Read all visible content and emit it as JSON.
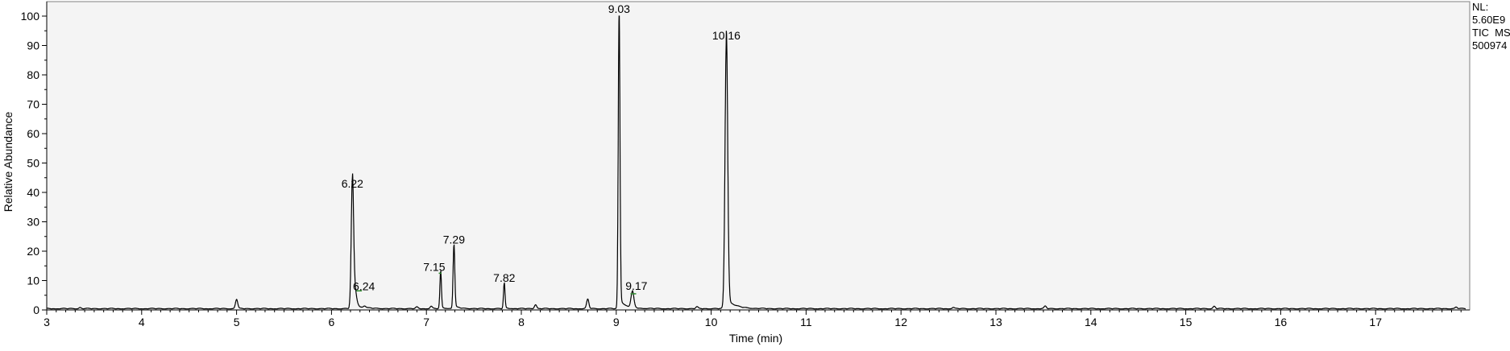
{
  "info": {
    "nl_label": "NL:",
    "nl_value": "5.60E9",
    "trace": "TIC  MS",
    "file": "500974"
  },
  "colors": {
    "plot_bg": "#f4f4f4",
    "trace": "#000000",
    "frame": "#808080",
    "marker": "#2e8b2e"
  },
  "chart_data": {
    "type": "line",
    "title": "",
    "xlabel": "Time (min)",
    "ylabel": "Relative Abundance",
    "xlim": [
      3.0,
      18.0
    ],
    "ylim": [
      0,
      100
    ],
    "xticks": [
      3,
      4,
      5,
      6,
      7,
      8,
      9,
      10,
      11,
      12,
      13,
      14,
      15,
      16,
      17
    ],
    "yticks": [
      0,
      10,
      20,
      30,
      40,
      50,
      60,
      70,
      80,
      90,
      100
    ],
    "grid": false,
    "legend": "none",
    "peaks": [
      {
        "rt": 6.22,
        "height": 40.5,
        "label": "6.22"
      },
      {
        "rt": 6.24,
        "height": 6.5,
        "label": "6.24"
      },
      {
        "rt": 7.15,
        "height": 12.5,
        "label": "7.15"
      },
      {
        "rt": 7.29,
        "height": 21.5,
        "label": "7.29"
      },
      {
        "rt": 7.82,
        "height": 8.5,
        "label": "7.82"
      },
      {
        "rt": 9.03,
        "height": 100,
        "label": "9.03"
      },
      {
        "rt": 9.17,
        "height": 5.5,
        "label": "9.17"
      },
      {
        "rt": 10.16,
        "height": 91,
        "label": "10.16"
      }
    ],
    "minor_peaks": [
      {
        "rt": 3.35,
        "height": 0.4
      },
      {
        "rt": 5.0,
        "height": 3.2
      },
      {
        "rt": 6.35,
        "height": 0.6
      },
      {
        "rt": 6.9,
        "height": 0.5
      },
      {
        "rt": 7.05,
        "height": 0.8
      },
      {
        "rt": 8.15,
        "height": 1.4
      },
      {
        "rt": 8.7,
        "height": 3.2
      },
      {
        "rt": 9.85,
        "height": 0.6
      },
      {
        "rt": 12.55,
        "height": 0.4
      },
      {
        "rt": 13.52,
        "height": 0.8
      },
      {
        "rt": 15.3,
        "height": 0.8
      },
      {
        "rt": 17.85,
        "height": 0.5
      }
    ]
  }
}
